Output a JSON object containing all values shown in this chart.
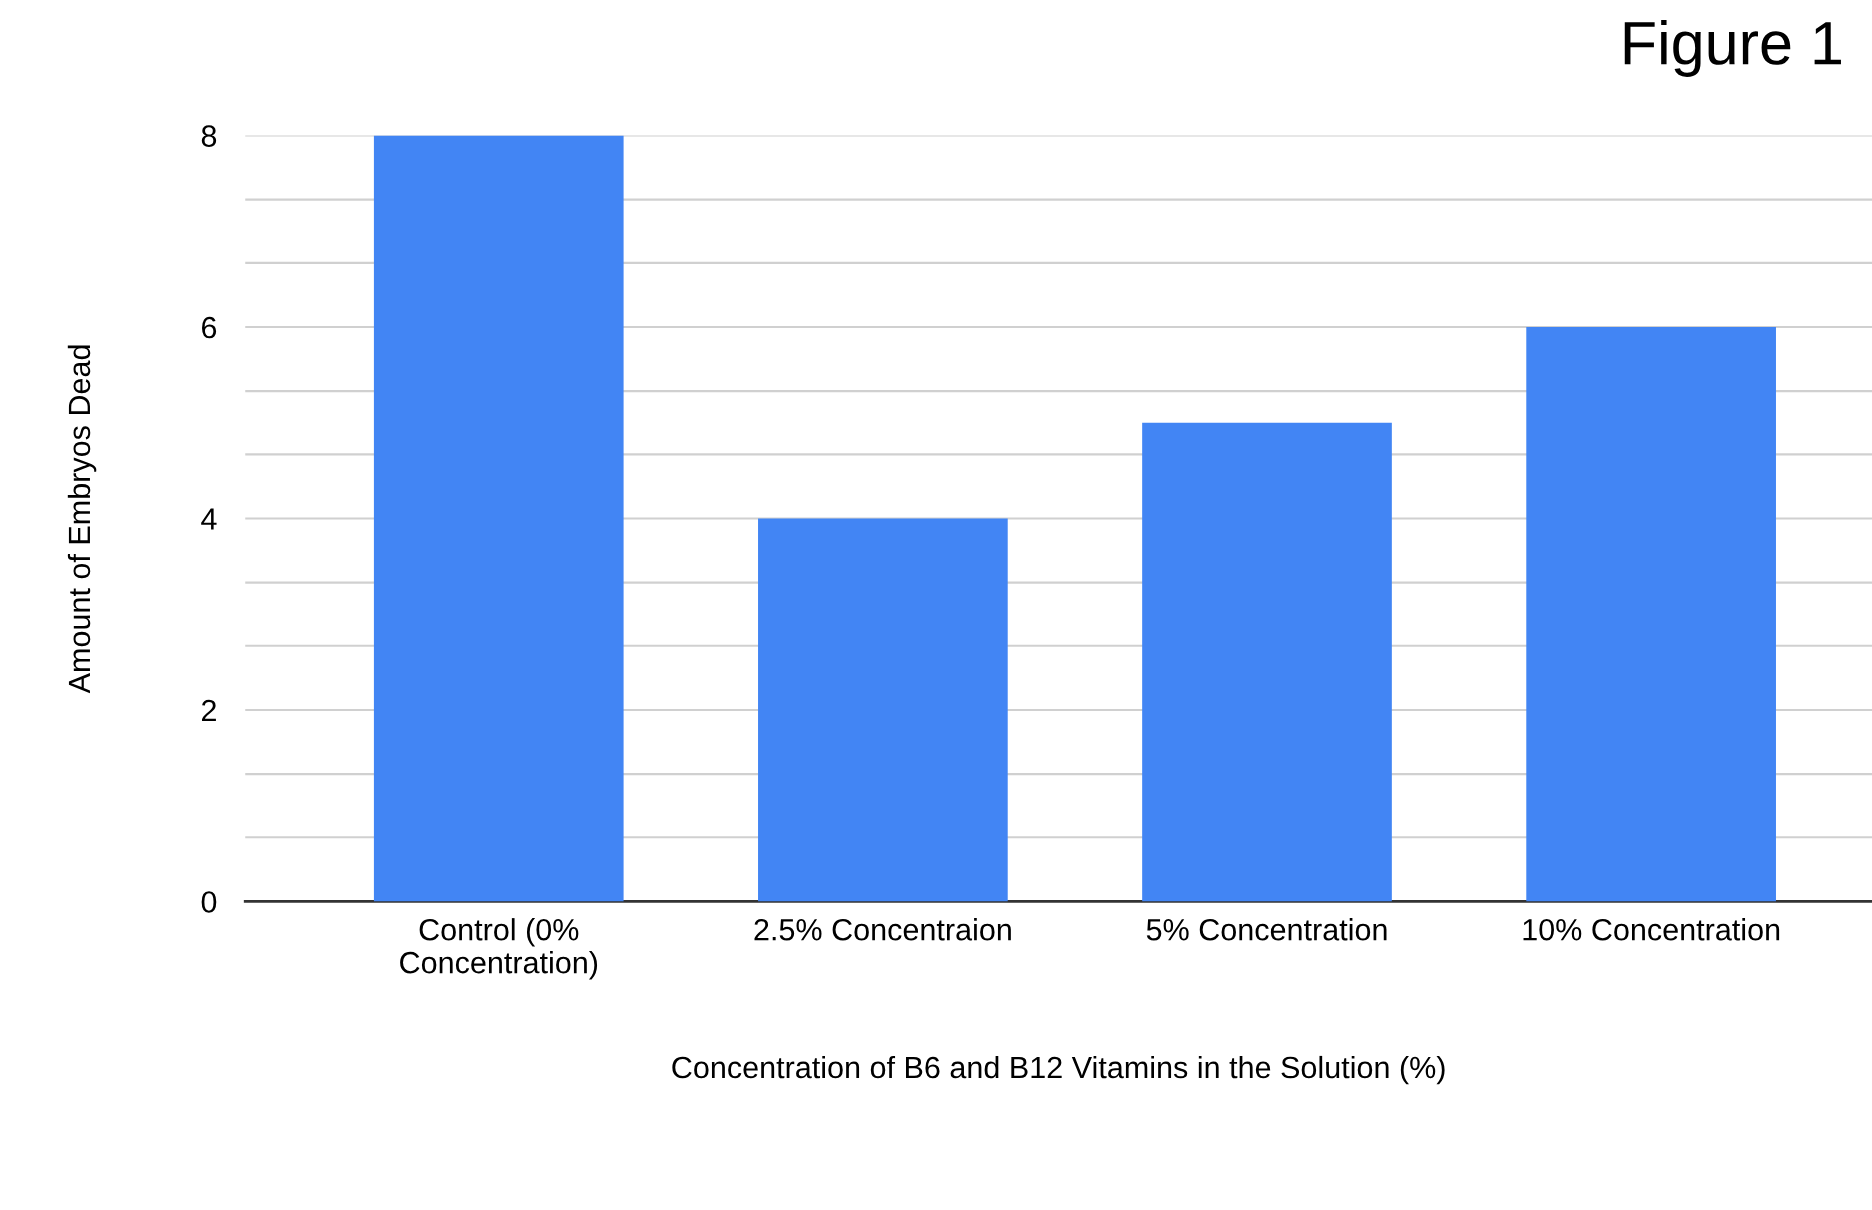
{
  "chart_data": {
    "type": "bar",
    "title": "Figure 1",
    "xlabel": "Concentration of B6 and B12 Vitamins in the Solution (%)",
    "ylabel": "Amount of Embryos Dead",
    "categories": [
      "Control (0%\nConcentration)",
      "2.5% Concentraion",
      "5% Concentration",
      "10% Concentration"
    ],
    "values": [
      8,
      4,
      5,
      6
    ],
    "color": "#4285f4",
    "ylim": [
      0,
      8
    ],
    "yticks": [
      0,
      {
        "value": 0.67,
        "label": null
      },
      {
        "value": 1.33,
        "label": null
      },
      2,
      {
        "value": 2.67,
        "label": null
      },
      {
        "value": 3.33,
        "label": null
      },
      4,
      {
        "value": 4.67,
        "label": null
      },
      {
        "value": 5.33,
        "label": null
      },
      6,
      {
        "value": 6.67,
        "label": null
      },
      {
        "value": 7.33,
        "label": null
      },
      8
    ],
    "grid": "y"
  }
}
